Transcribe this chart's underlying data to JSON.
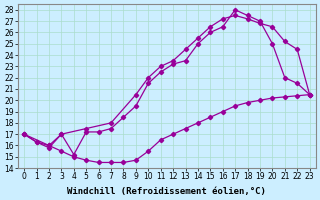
{
  "xlabel": "Windchill (Refroidissement éolien,°C)",
  "ylabel": "",
  "bg_color": "#cceeff",
  "line_color": "#990099",
  "xlim": [
    -0.5,
    23.5
  ],
  "ylim": [
    14,
    28.5
  ],
  "xticks": [
    0,
    1,
    2,
    3,
    4,
    5,
    6,
    7,
    8,
    9,
    10,
    11,
    12,
    13,
    14,
    15,
    16,
    17,
    18,
    19,
    20,
    21,
    22,
    23
  ],
  "yticks": [
    14,
    15,
    16,
    17,
    18,
    19,
    20,
    21,
    22,
    23,
    24,
    25,
    26,
    27,
    28
  ],
  "line1_x": [
    0,
    1,
    2,
    3,
    4,
    5,
    6,
    7,
    8,
    9,
    10,
    11,
    12,
    13,
    14,
    15,
    16,
    17,
    18,
    19,
    20,
    21,
    22,
    23
  ],
  "line1_y": [
    17.0,
    16.3,
    16.0,
    15.5,
    15.0,
    14.7,
    14.5,
    14.5,
    14.5,
    14.7,
    15.5,
    16.5,
    17.0,
    17.5,
    18.0,
    18.5,
    19.0,
    19.5,
    19.8,
    20.0,
    20.2,
    20.3,
    20.4,
    20.5
  ],
  "line2_x": [
    0,
    1,
    2,
    3,
    4,
    5,
    6,
    7,
    8,
    9,
    10,
    11,
    12,
    13,
    14,
    15,
    16,
    17,
    18,
    19,
    20,
    21,
    22,
    23
  ],
  "line2_y": [
    17.0,
    16.3,
    15.8,
    17.0,
    15.2,
    17.2,
    17.2,
    17.5,
    18.5,
    19.5,
    21.5,
    22.5,
    23.2,
    23.5,
    25.0,
    26.0,
    26.5,
    28.0,
    27.5,
    27.0,
    25.0,
    22.0,
    21.5,
    20.5
  ],
  "line3_x": [
    0,
    2,
    3,
    5,
    7,
    9,
    10,
    11,
    12,
    13,
    14,
    15,
    16,
    17,
    18,
    19,
    20,
    21,
    22,
    23
  ],
  "line3_y": [
    17.0,
    16.0,
    17.0,
    17.5,
    18.0,
    20.5,
    22.0,
    23.0,
    23.5,
    24.5,
    25.5,
    26.5,
    27.2,
    27.5,
    27.2,
    26.8,
    26.5,
    25.2,
    24.5,
    20.5
  ],
  "grid_color": "#aaddcc",
  "marker": "D",
  "markersize": 2.2,
  "linewidth": 0.9,
  "label_fontsize": 6.5,
  "tick_fontsize": 5.5
}
